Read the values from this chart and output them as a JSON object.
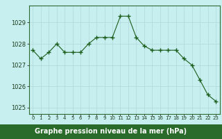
{
  "x": [
    0,
    1,
    2,
    3,
    4,
    5,
    6,
    7,
    8,
    9,
    10,
    11,
    12,
    13,
    14,
    15,
    16,
    17,
    18,
    19,
    20,
    21,
    22,
    23
  ],
  "y": [
    1027.7,
    1027.3,
    1027.6,
    1028.0,
    1027.6,
    1027.6,
    1027.6,
    1028.0,
    1028.3,
    1028.3,
    1028.3,
    1029.3,
    1029.3,
    1028.3,
    1027.9,
    1027.7,
    1027.7,
    1027.7,
    1027.7,
    1027.3,
    1027.0,
    1026.3,
    1025.6,
    1025.3
  ],
  "line_color": "#1a5c1a",
  "marker_color": "#1a5c1a",
  "bg_color": "#c8eff0",
  "grid_color": "#b0d8d8",
  "ylabel_ticks": [
    1025,
    1026,
    1027,
    1028,
    1029
  ],
  "xlabel_label": "Graphe pression niveau de la mer (hPa)",
  "ylim": [
    1024.7,
    1029.8
  ],
  "xlim": [
    -0.5,
    23.5
  ],
  "border_color": "#2d6a2d",
  "font_color": "#1a3a1a",
  "bottom_bar_color": "#2a6a2a",
  "bottom_text_color": "#ffffff"
}
